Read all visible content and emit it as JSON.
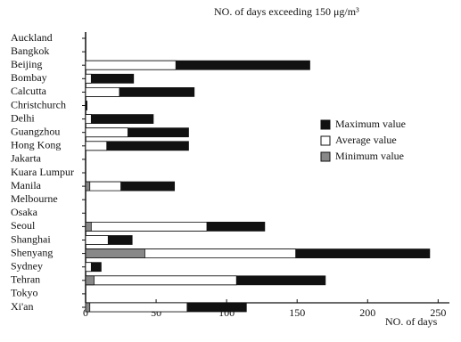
{
  "chart_data": {
    "type": "bar",
    "orientation": "horizontal",
    "overlay": true,
    "title": "NO. of days exceeding 150 μg/m³",
    "x_label": "NO. of days",
    "categories": [
      "Auckland",
      "Bangkok",
      "Beijing",
      "Bombay",
      "Calcutta",
      "Christchurch",
      "Delhi",
      "Guangzhou",
      "Hong Kong",
      "Jakarta",
      "Kuara Lumpur",
      "Manila",
      "Melbourne",
      "Osaka",
      "Seoul",
      "Shanghai",
      "Shenyang",
      "Sydney",
      "Tehran",
      "Tokyo",
      "Xi'an"
    ],
    "series": [
      {
        "name": "Maximum value",
        "color": "#111111",
        "values": [
          null,
          null,
          159,
          34,
          77,
          1,
          48,
          73,
          73,
          null,
          null,
          63,
          null,
          null,
          127,
          33,
          244,
          11,
          170,
          null,
          114
        ]
      },
      {
        "name": "Average value",
        "color": "#ffffff",
        "values": [
          null,
          null,
          64,
          4,
          24,
          null,
          4,
          30,
          15,
          null,
          null,
          25,
          null,
          null,
          86,
          16,
          149,
          4,
          107,
          null,
          72
        ]
      },
      {
        "name": "Minimum value",
        "color": "#888888",
        "values": [
          null,
          null,
          null,
          null,
          null,
          null,
          null,
          null,
          null,
          null,
          null,
          3,
          null,
          null,
          4,
          null,
          42,
          null,
          6,
          null,
          3
        ]
      }
    ],
    "xlim": [
      0,
      258
    ],
    "xticks": [
      0,
      50,
      100,
      150,
      200,
      250
    ],
    "legend": "right"
  }
}
